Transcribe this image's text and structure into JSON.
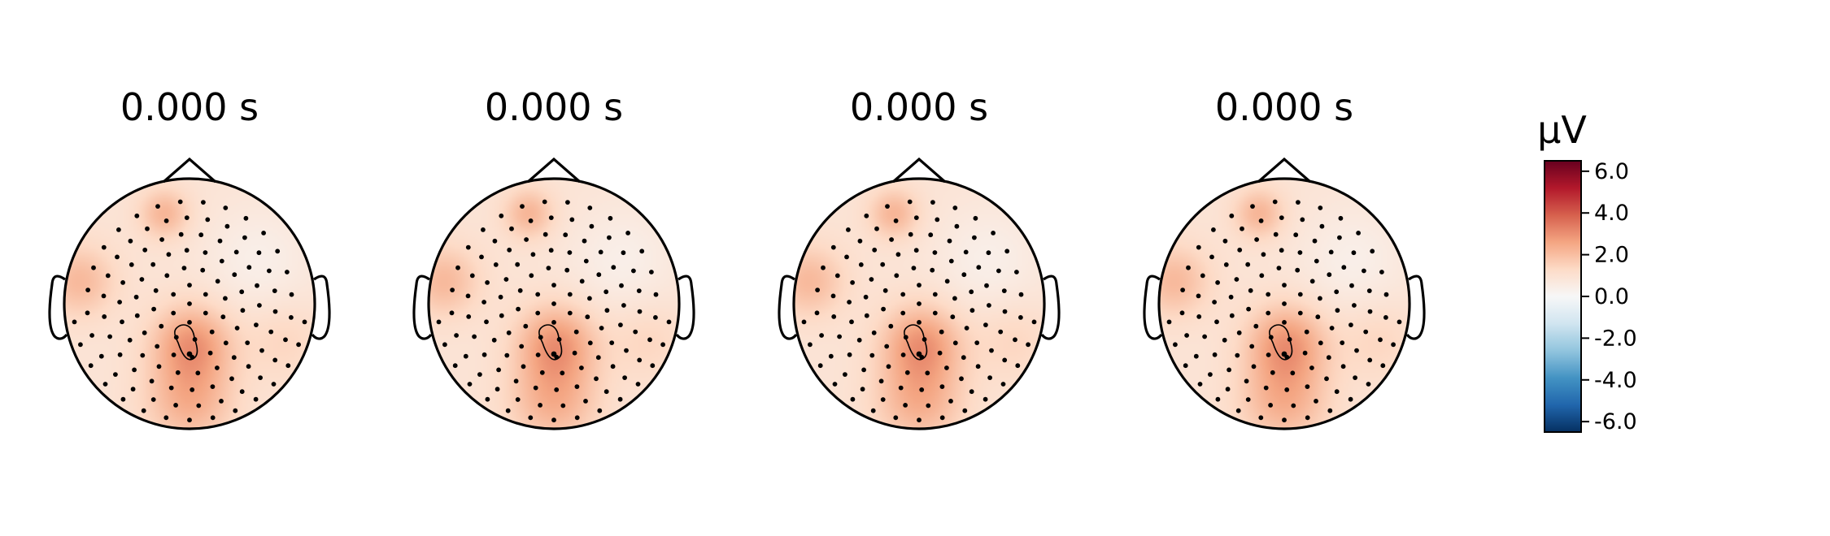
{
  "chart_data": {
    "type": "heatmap",
    "subtype": "topomap",
    "panels": [
      {
        "title": "0.000 s",
        "highlight_sensor_contour": true
      },
      {
        "title": "0.000 s",
        "highlight_sensor_contour": true
      },
      {
        "title": "0.000 s",
        "highlight_sensor_contour": true
      },
      {
        "title": "0.000 s",
        "highlight_sensor_contour": true
      }
    ],
    "colorbar": {
      "unit": "μV",
      "colormap": "RdBu_r",
      "vmin": -6.5,
      "vmax": 6.5,
      "ticks": [
        6.0,
        4.0,
        2.0,
        0.0,
        -2.0,
        -4.0,
        -6.0
      ],
      "tick_labels": [
        "6.0",
        "4.0",
        "2.0",
        "0.0",
        "-2.0",
        "-4.0",
        "-6.0"
      ]
    },
    "field": {
      "baseline_uV": 0.9,
      "blobs": [
        {
          "x": 0.02,
          "y": -0.32,
          "amplitude_uV": 1.9,
          "spread": 0.22
        },
        {
          "x": 0.0,
          "y": -0.78,
          "amplitude_uV": 1.4,
          "spread": 0.25
        },
        {
          "x": -0.2,
          "y": 0.72,
          "amplitude_uV": 1.3,
          "spread": 0.14
        },
        {
          "x": -0.88,
          "y": 0.18,
          "amplitude_uV": 1.2,
          "spread": 0.2
        },
        {
          "x": 0.55,
          "y": 0.35,
          "amplitude_uV": -0.5,
          "spread": 0.3
        },
        {
          "x": 0.75,
          "y": -0.3,
          "amplitude_uV": 0.5,
          "spread": 0.22
        }
      ]
    },
    "sensor_count": 128,
    "colors": {
      "head_outline": "#000000",
      "sensor": "#000000",
      "background": "#ffffff"
    }
  }
}
